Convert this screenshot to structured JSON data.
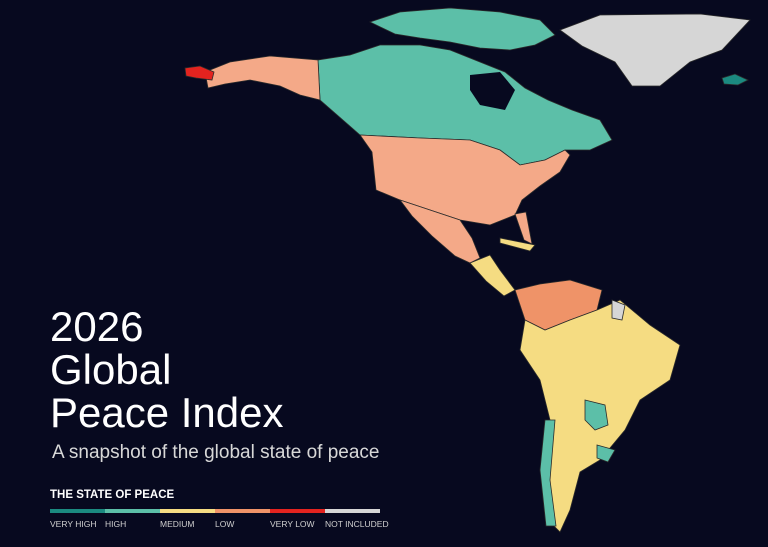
{
  "title_lines": [
    "2026",
    "Global",
    "Peace Index"
  ],
  "subtitle": "A snapshot of the global state of peace",
  "legend": {
    "title": "THE STATE OF PEACE",
    "items": [
      {
        "label": "VERY HIGH",
        "color": "#1b8a80"
      },
      {
        "label": "HIGH",
        "color": "#5cbfa8"
      },
      {
        "label": "MEDIUM",
        "color": "#f5dc82"
      },
      {
        "label": "LOW",
        "color": "#ef9368"
      },
      {
        "label": "VERY LOW",
        "color": "#e3231f"
      },
      {
        "label": "NOT INCLUDED",
        "color": "#d6d6d6"
      }
    ]
  }
}
